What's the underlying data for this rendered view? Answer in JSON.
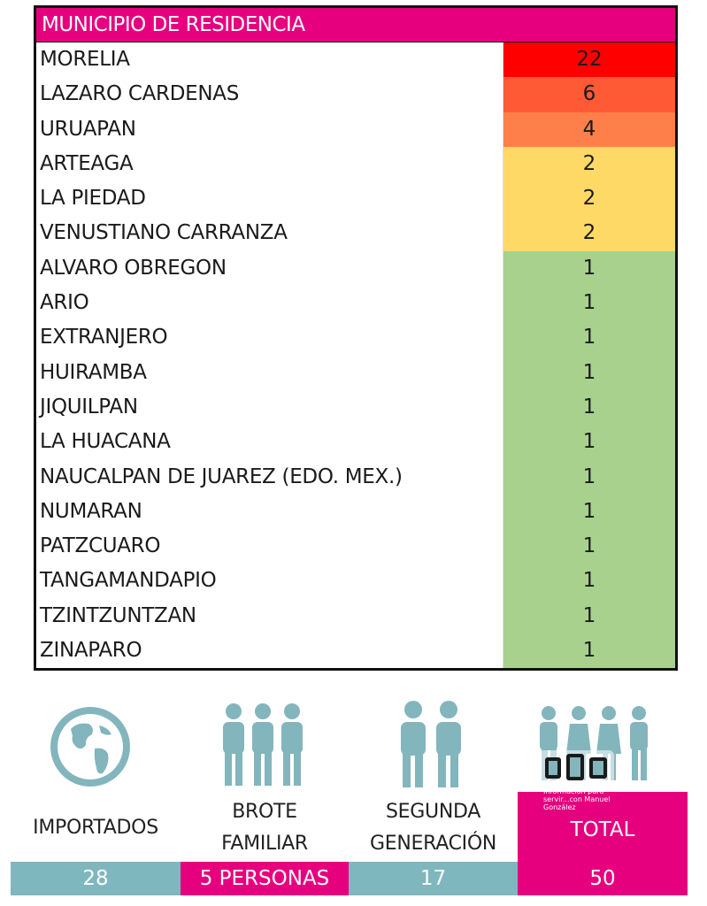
{
  "table": {
    "header": "MUNICIPIO DE RESIDENCIA",
    "rows": [
      {
        "name": "MORELIA",
        "value": "22",
        "color": "#ff0000"
      },
      {
        "name": "LAZARO CARDENAS",
        "value": "6",
        "color": "#ff5a36"
      },
      {
        "name": "URUAPAN",
        "value": "4",
        "color": "#ff7f4a"
      },
      {
        "name": "ARTEAGA",
        "value": "2",
        "color": "#ffd966"
      },
      {
        "name": "LA PIEDAD",
        "value": "2",
        "color": "#ffd966"
      },
      {
        "name": "VENUSTIANO CARRANZA",
        "value": "2",
        "color": "#ffd966"
      },
      {
        "name": "ALVARO OBREGON",
        "value": "1",
        "color": "#a9d18e"
      },
      {
        "name": "ARIO",
        "value": "1",
        "color": "#a9d18e"
      },
      {
        "name": "EXTRANJERO",
        "value": "1",
        "color": "#a9d18e"
      },
      {
        "name": "HUIRAMBA",
        "value": "1",
        "color": "#a9d18e"
      },
      {
        "name": "JIQUILPAN",
        "value": "1",
        "color": "#a9d18e"
      },
      {
        "name": "LA HUACANA",
        "value": "1",
        "color": "#a9d18e"
      },
      {
        "name": "NAUCALPAN DE JUAREZ (EDO. MEX.)",
        "value": "1",
        "color": "#a9d18e"
      },
      {
        "name": "NUMARAN",
        "value": "1",
        "color": "#a9d18e"
      },
      {
        "name": "PATZCUARO",
        "value": "1",
        "color": "#a9d18e"
      },
      {
        "name": "TANGAMANDAPIO",
        "value": "1",
        "color": "#a9d18e"
      },
      {
        "name": "TZINTZUNTZAN",
        "value": "1",
        "color": "#a9d18e"
      },
      {
        "name": "ZINAPARO",
        "value": "1",
        "color": "#a9d18e"
      }
    ]
  },
  "summary": {
    "importados": {
      "label": "IMPORTADOS",
      "value": "28",
      "icon": "globe-icon"
    },
    "brote": {
      "label_line1": "BROTE",
      "label_line2": "FAMILIAR",
      "value": "5 PERSONAS",
      "icon": "three-people-icon"
    },
    "segunda": {
      "label_line1": "SEGUNDA",
      "label_line2": "GENERACIÓN",
      "value": "17",
      "icon": "two-people-icon"
    },
    "total": {
      "label": "TOTAL",
      "value": "50",
      "icon": "group-people-icon"
    }
  },
  "watermark": {
    "text_line1": "Información para",
    "text_line2": "servir...con Manuel",
    "text_line3": "González"
  },
  "colors": {
    "magenta": "#e6007e",
    "teal": "#7fb7bf",
    "icon": "#83b5bd",
    "red": "#ff0000",
    "yellow": "#ffd966",
    "green": "#a9d18e"
  }
}
